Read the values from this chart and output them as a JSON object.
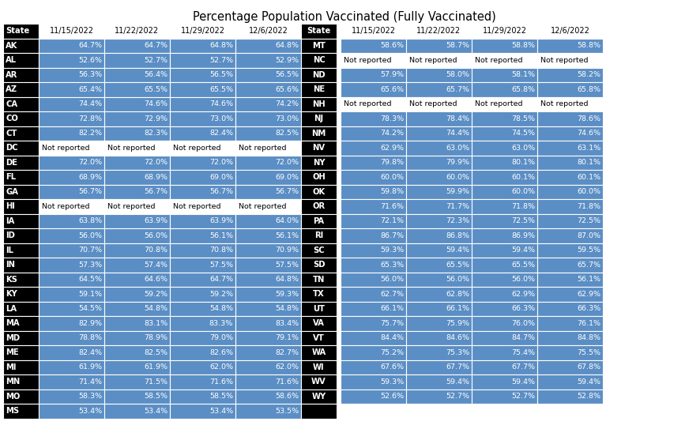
{
  "title": "Percentage Population Vaccinated (Fully Vaccinated)",
  "columns": [
    "11/15/2022",
    "11/22/2022",
    "11/29/2022",
    "12/6/2022"
  ],
  "left_states": [
    "AK",
    "AL",
    "AR",
    "AZ",
    "CA",
    "CO",
    "CT",
    "DC",
    "DE",
    "FL",
    "GA",
    "HI",
    "IA",
    "ID",
    "IL",
    "IN",
    "KS",
    "KY",
    "LA",
    "MA",
    "MD",
    "ME",
    "MI",
    "MN",
    "MO",
    "MS"
  ],
  "left_data": [
    [
      "64.7%",
      "64.7%",
      "64.8%",
      "64.8%"
    ],
    [
      "52.6%",
      "52.7%",
      "52.7%",
      "52.9%"
    ],
    [
      "56.3%",
      "56.4%",
      "56.5%",
      "56.5%"
    ],
    [
      "65.4%",
      "65.5%",
      "65.5%",
      "65.6%"
    ],
    [
      "74.4%",
      "74.6%",
      "74.6%",
      "74.2%"
    ],
    [
      "72.8%",
      "72.9%",
      "73.0%",
      "73.0%"
    ],
    [
      "82.2%",
      "82.3%",
      "82.4%",
      "82.5%"
    ],
    [
      "Not reported",
      "Not reported",
      "Not reported",
      "Not reported"
    ],
    [
      "72.0%",
      "72.0%",
      "72.0%",
      "72.0%"
    ],
    [
      "68.9%",
      "68.9%",
      "69.0%",
      "69.0%"
    ],
    [
      "56.7%",
      "56.7%",
      "56.7%",
      "56.7%"
    ],
    [
      "Not reported",
      "Not reported",
      "Not reported",
      "Not reported"
    ],
    [
      "63.8%",
      "63.9%",
      "63.9%",
      "64.0%"
    ],
    [
      "56.0%",
      "56.0%",
      "56.1%",
      "56.1%"
    ],
    [
      "70.7%",
      "70.8%",
      "70.8%",
      "70.9%"
    ],
    [
      "57.3%",
      "57.4%",
      "57.5%",
      "57.5%"
    ],
    [
      "64.5%",
      "64.6%",
      "64.7%",
      "64.8%"
    ],
    [
      "59.1%",
      "59.2%",
      "59.2%",
      "59.3%"
    ],
    [
      "54.5%",
      "54.8%",
      "54.8%",
      "54.8%"
    ],
    [
      "82.9%",
      "83.1%",
      "83.3%",
      "83.4%"
    ],
    [
      "78.8%",
      "78.9%",
      "79.0%",
      "79.1%"
    ],
    [
      "82.4%",
      "82.5%",
      "82.6%",
      "82.7%"
    ],
    [
      "61.9%",
      "61.9%",
      "62.0%",
      "62.0%"
    ],
    [
      "71.4%",
      "71.5%",
      "71.6%",
      "71.6%"
    ],
    [
      "58.3%",
      "58.5%",
      "58.5%",
      "58.6%"
    ],
    [
      "53.4%",
      "53.4%",
      "53.4%",
      "53.5%"
    ]
  ],
  "right_states": [
    "MT",
    "NC",
    "ND",
    "NE",
    "NH",
    "NJ",
    "NM",
    "NV",
    "NY",
    "OH",
    "OK",
    "OR",
    "PA",
    "RI",
    "SC",
    "SD",
    "TN",
    "TX",
    "UT",
    "VA",
    "VT",
    "WA",
    "WI",
    "WV",
    "WY",
    ""
  ],
  "right_data": [
    [
      "58.6%",
      "58.7%",
      "58.8%",
      "58.8%"
    ],
    [
      "Not reported",
      "Not reported",
      "Not reported",
      "Not reported"
    ],
    [
      "57.9%",
      "58.0%",
      "58.1%",
      "58.2%"
    ],
    [
      "65.6%",
      "65.7%",
      "65.8%",
      "65.8%"
    ],
    [
      "Not reported",
      "Not reported",
      "Not reported",
      "Not reported"
    ],
    [
      "78.3%",
      "78.4%",
      "78.5%",
      "78.6%"
    ],
    [
      "74.2%",
      "74.4%",
      "74.5%",
      "74.6%"
    ],
    [
      "62.9%",
      "63.0%",
      "63.0%",
      "63.1%"
    ],
    [
      "79.8%",
      "79.9%",
      "80.1%",
      "80.1%"
    ],
    [
      "60.0%",
      "60.0%",
      "60.1%",
      "60.1%"
    ],
    [
      "59.8%",
      "59.9%",
      "60.0%",
      "60.0%"
    ],
    [
      "71.6%",
      "71.7%",
      "71.8%",
      "71.8%"
    ],
    [
      "72.1%",
      "72.3%",
      "72.5%",
      "72.5%"
    ],
    [
      "86.7%",
      "86.8%",
      "86.9%",
      "87.0%"
    ],
    [
      "59.3%",
      "59.4%",
      "59.4%",
      "59.5%"
    ],
    [
      "65.3%",
      "65.5%",
      "65.5%",
      "65.7%"
    ],
    [
      "56.0%",
      "56.0%",
      "56.0%",
      "56.1%"
    ],
    [
      "62.7%",
      "62.8%",
      "62.9%",
      "62.9%"
    ],
    [
      "66.1%",
      "66.1%",
      "66.3%",
      "66.3%"
    ],
    [
      "75.7%",
      "75.9%",
      "76.0%",
      "76.1%"
    ],
    [
      "84.4%",
      "84.6%",
      "84.7%",
      "84.8%"
    ],
    [
      "75.2%",
      "75.3%",
      "75.4%",
      "75.5%"
    ],
    [
      "67.6%",
      "67.7%",
      "67.7%",
      "67.8%"
    ],
    [
      "59.3%",
      "59.4%",
      "59.4%",
      "59.4%"
    ],
    [
      "52.6%",
      "52.7%",
      "52.7%",
      "52.8%"
    ],
    [
      "",
      "",
      "",
      ""
    ]
  ],
  "header_bg": "#000000",
  "header_text": "#ffffff",
  "cell_bg_blue": "#5b8ec4",
  "cell_bg_white": "#ffffff",
  "cell_text_white": "#ffffff",
  "cell_text_dark": "#000000",
  "title_fontsize": 10.5,
  "header_fontsize": 7.0,
  "cell_fontsize": 6.8,
  "state_fontsize": 7.2
}
